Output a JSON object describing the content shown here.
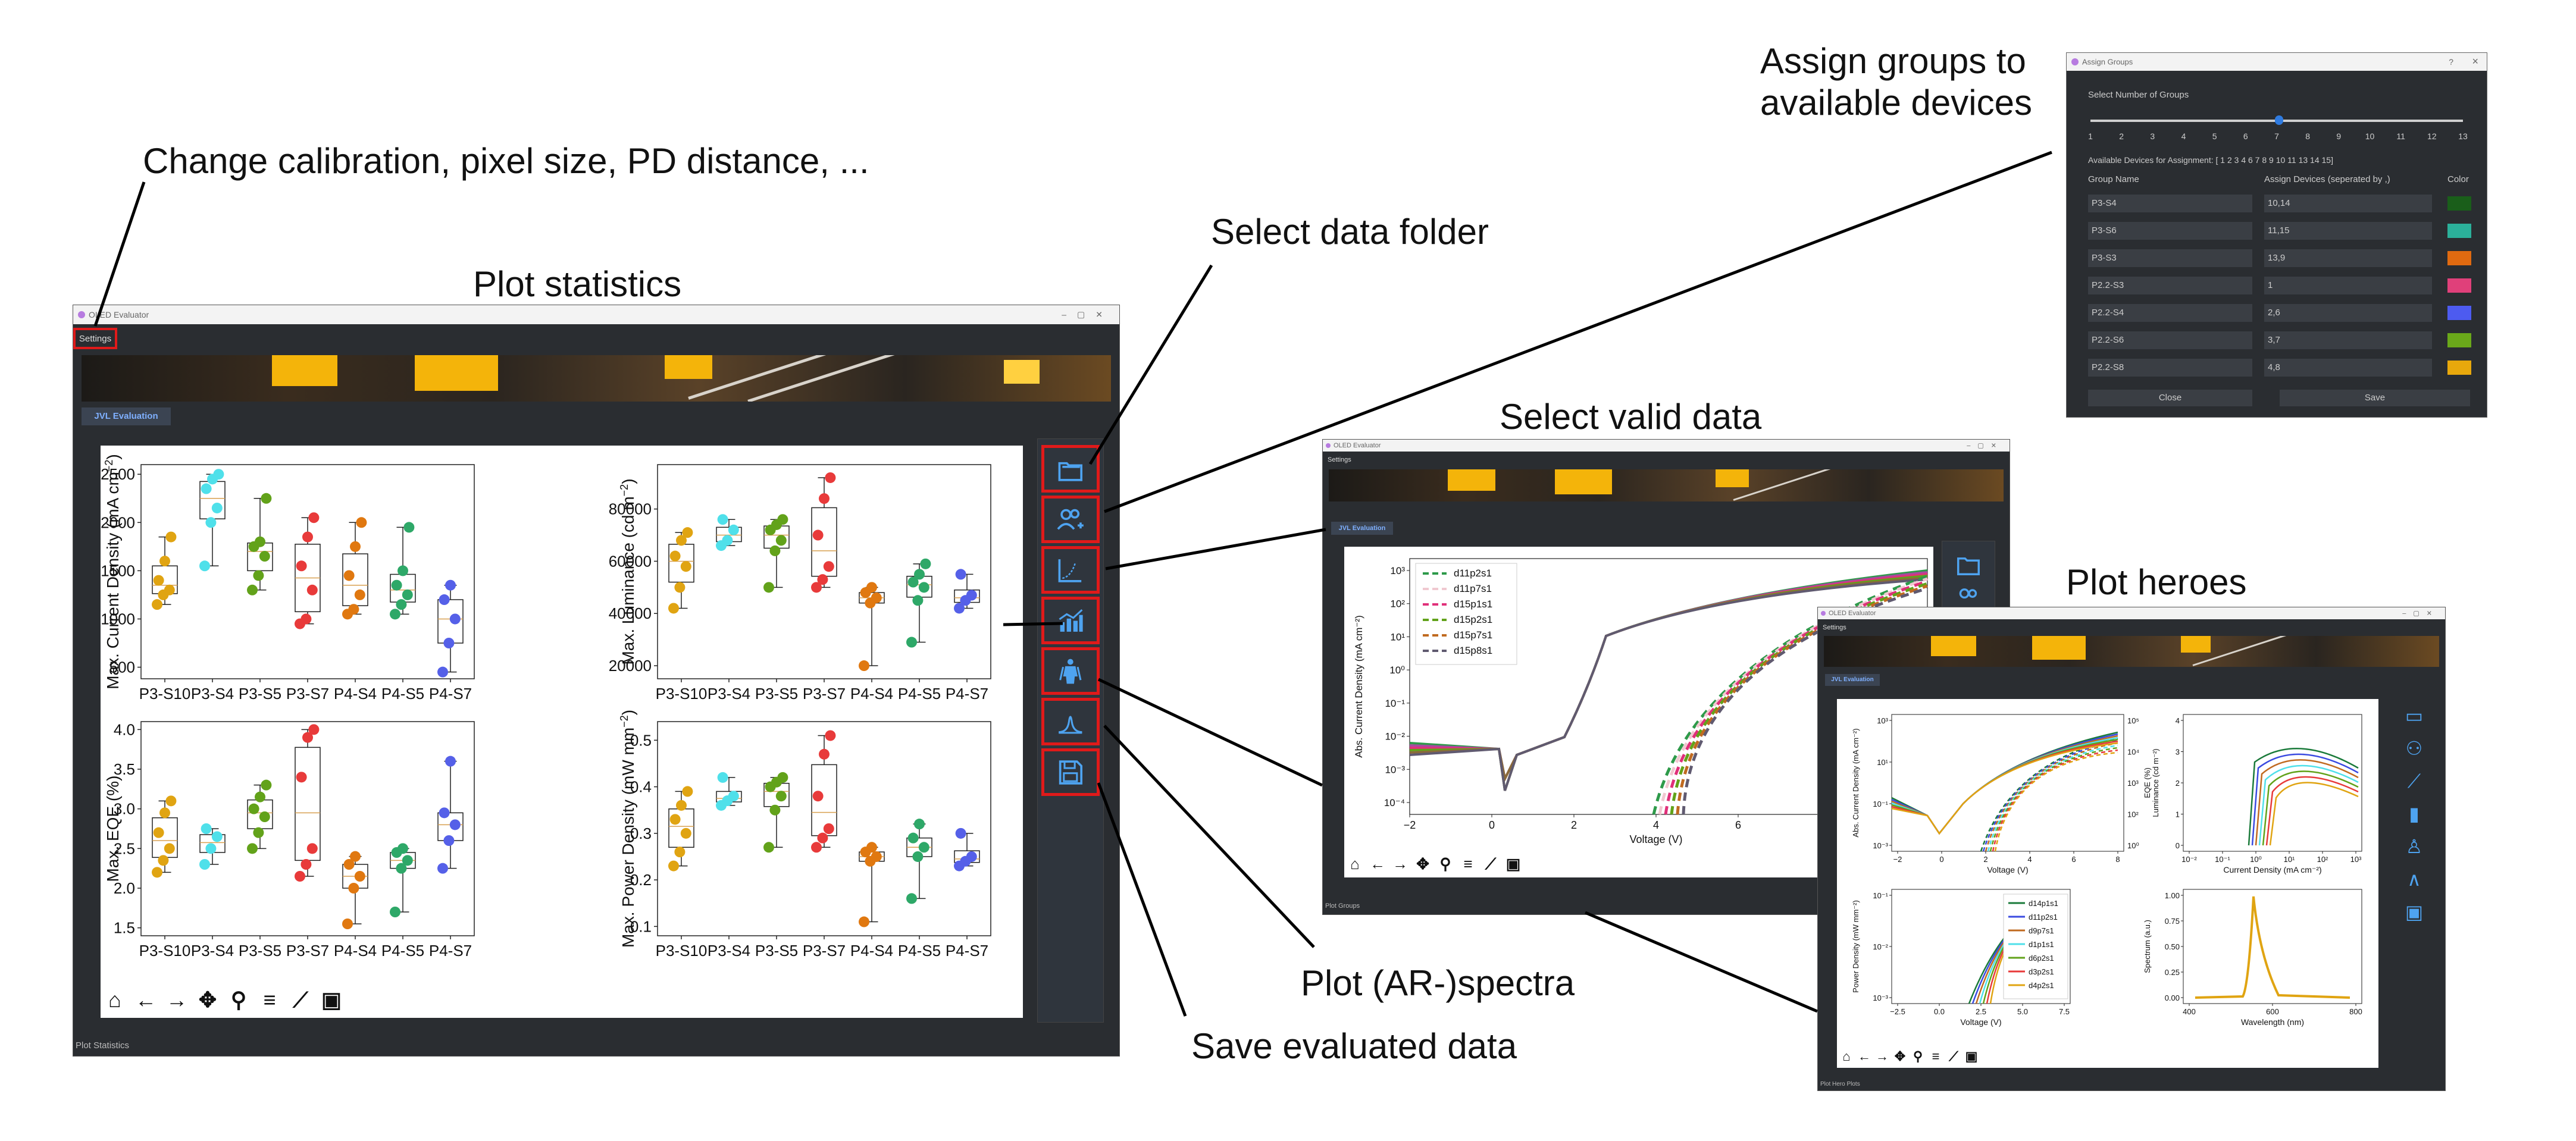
{
  "annotations": {
    "calibration": "Change calibration, pixel size, PD distance, ...",
    "plot_statistics": "Plot statistics",
    "select_folder": "Select data folder",
    "assign_groups_line1": "Assign groups to",
    "assign_groups_line2": "available devices",
    "select_valid": "Select valid data",
    "plot_heroes": "Plot heroes",
    "plot_spectra": "Plot (AR-)spectra",
    "save_data": "Save evaluated data"
  },
  "main_window": {
    "title": "OLED Evaluator",
    "menu_settings": "Settings",
    "tab": "JVL Evaluation",
    "status": "Plot Statistics"
  },
  "valid_window": {
    "title": "OLED Evaluator",
    "menu_settings": "Settings",
    "tab": "JVL Evaluation",
    "status": "Plot Groups"
  },
  "heroes_window": {
    "title": "OLED Evaluator",
    "menu_settings": "Settings",
    "tab": "JVL Evaluation",
    "status": "Plot Hero Plots"
  },
  "dialog": {
    "title": "Assign Groups",
    "help": "?",
    "close_x": "×",
    "slider_label": "Select Number of Groups",
    "slider_ticks": [
      "1",
      "2",
      "3",
      "4",
      "5",
      "6",
      "7",
      "8",
      "9",
      "10",
      "11",
      "12",
      "13"
    ],
    "slider_value": 7,
    "available": "Available Devices for Assignment: [ 1  2  3  4  6  7  8  9 10 11 13 14 15]",
    "col_name": "Group Name",
    "col_assign": "Assign Devices (seperated by ,)",
    "col_color": "Color",
    "rows": [
      {
        "name": "P3-S4",
        "devices": "10,14",
        "color": "#1a5e1a"
      },
      {
        "name": "P3-S6",
        "devices": "11,15",
        "color": "#2bb09a"
      },
      {
        "name": "P3-S3",
        "devices": "13,9",
        "color": "#e06a10"
      },
      {
        "name": "P2.2-S3",
        "devices": "1",
        "color": "#e0407a"
      },
      {
        "name": "P2.2-S4",
        "devices": "2,6",
        "color": "#4d5bf0"
      },
      {
        "name": "P2.2-S6",
        "devices": "3,7",
        "color": "#6aa81a"
      },
      {
        "name": "P2.2-S8",
        "devices": "4,8",
        "color": "#e8a80c"
      }
    ],
    "close_btn": "Close",
    "save_btn": "Save"
  },
  "colors": {
    "accent_red": "#e01a1a",
    "icon_blue": "#4ea3f0",
    "groups": [
      "#e0a412",
      "#4fe0ea",
      "#62a21a",
      "#e83a3a",
      "#e07810",
      "#2ea868",
      "#5560e8"
    ]
  },
  "toolbar_icons": [
    "home-icon",
    "back-icon",
    "forward-icon",
    "pan-icon",
    "zoom-icon",
    "configure-icon",
    "edit-axes-icon",
    "save-icon"
  ],
  "chart_data": [
    {
      "type": "scatter",
      "chart": "box-plot",
      "ylabel": "Max. Current Density (mA cm$^{-2}$)",
      "ylabel_text": "Max. Current Density (mA cm",
      "ylabel_sup": "−2",
      "categories": [
        "P3-S10",
        "P3-S4",
        "P3-S5",
        "P3-S7",
        "P4-S4",
        "P4-S5",
        "P4-S7"
      ],
      "yticks": [
        "500",
        "1000",
        "1500",
        "2000",
        "2500"
      ],
      "ylim": [
        380,
        2600
      ],
      "points": [
        [
          1150,
          1250,
          1300,
          1400,
          1600,
          1850
        ],
        [
          1550,
          2000,
          2150,
          2350,
          2450,
          2500
        ],
        [
          1300,
          1450,
          1650,
          1750,
          1800,
          2250
        ],
        [
          950,
          1000,
          1300,
          1550,
          1850,
          2050
        ],
        [
          1050,
          1100,
          1250,
          1450,
          1750,
          2000
        ],
        [
          1050,
          1150,
          1250,
          1350,
          1500,
          1950
        ],
        [
          450,
          750,
          1000,
          1200,
          1350
        ]
      ]
    },
    {
      "type": "scatter",
      "chart": "box-plot",
      "ylabel_text": "Max. Luminance (cd m",
      "ylabel_sup": "−2",
      "categories": [
        "P3-S10",
        "P3-S4",
        "P3-S5",
        "P3-S7",
        "P4-S4",
        "P4-S5",
        "P4-S7"
      ],
      "yticks": [
        "20000",
        "40000",
        "60000",
        "80000"
      ],
      "ylim": [
        15000,
        97000
      ],
      "points": [
        [
          42000,
          50000,
          58000,
          62000,
          68000,
          71000
        ],
        [
          66000,
          68000,
          72000,
          76000
        ],
        [
          50000,
          64000,
          68000,
          72000,
          74000,
          76000
        ],
        [
          50000,
          53000,
          58000,
          70000,
          84000,
          92000
        ],
        [
          20000,
          44000,
          46000,
          48000,
          50000
        ],
        [
          29000,
          45000,
          50000,
          52000,
          55000,
          59000
        ],
        [
          42000,
          45000,
          47000,
          55000
        ]
      ]
    },
    {
      "type": "scatter",
      "chart": "box-plot",
      "ylabel_text": "Max. EQE (%)",
      "ylabel_sup": "",
      "categories": [
        "P3-S10",
        "P3-S4",
        "P3-S5",
        "P3-S7",
        "P4-S4",
        "P4-S5",
        "P4-S7"
      ],
      "yticks": [
        "1.5",
        "2.0",
        "2.5",
        "3.0",
        "3.5",
        "4.0"
      ],
      "ylim": [
        1.4,
        4.1
      ],
      "points": [
        [
          2.2,
          2.35,
          2.5,
          2.7,
          2.95,
          3.1
        ],
        [
          2.3,
          2.5,
          2.65,
          2.75
        ],
        [
          2.5,
          2.7,
          2.9,
          3.0,
          3.15,
          3.3
        ],
        [
          2.15,
          2.3,
          2.5,
          3.4,
          3.9,
          4.0
        ],
        [
          1.55,
          2.0,
          2.15,
          2.3,
          2.4
        ],
        [
          1.7,
          2.25,
          2.35,
          2.45,
          2.5
        ],
        [
          2.25,
          2.6,
          2.8,
          2.95,
          3.6
        ]
      ]
    },
    {
      "type": "scatter",
      "chart": "box-plot",
      "ylabel_text": "Max. Power Density (mW mm",
      "ylabel_sup": "−2",
      "categories": [
        "P3-S10",
        "P3-S4",
        "P3-S5",
        "P3-S7",
        "P4-S4",
        "P4-S5",
        "P4-S7"
      ],
      "yticks": [
        "0.1",
        "0.2",
        "0.3",
        "0.4",
        "0.5"
      ],
      "ylim": [
        0.08,
        0.54
      ],
      "points": [
        [
          0.23,
          0.26,
          0.3,
          0.33,
          0.36,
          0.39
        ],
        [
          0.36,
          0.37,
          0.38,
          0.42
        ],
        [
          0.27,
          0.35,
          0.38,
          0.4,
          0.41,
          0.42
        ],
        [
          0.27,
          0.29,
          0.31,
          0.38,
          0.47,
          0.51
        ],
        [
          0.11,
          0.24,
          0.25,
          0.26,
          0.27
        ],
        [
          0.16,
          0.25,
          0.27,
          0.29,
          0.32
        ],
        [
          0.23,
          0.24,
          0.25,
          0.3
        ]
      ]
    },
    {
      "type": "line",
      "xlabel": "Voltage (V)",
      "ylabel": "Abs. Current Density (mA cm⁻²)",
      "xticks": [
        "−2",
        "0",
        "2",
        "4",
        "6"
      ],
      "yticks": [
        "10⁻⁴",
        "10⁻³",
        "10⁻²",
        "10⁻¹",
        "10⁰",
        "10¹",
        "10²",
        "10³"
      ],
      "legend": [
        "d11p2s1",
        "d11p7s1",
        "d15p1s1",
        "d15p2s1",
        "d15p7s1",
        "d15p8s1"
      ],
      "legend_colors": [
        "#2e9a4a",
        "#f0c8d0",
        "#e0307a",
        "#62a21a",
        "#c06a20",
        "#605a70"
      ]
    },
    {
      "type": "line",
      "xlabel": "Voltage (V)",
      "ylabel": "Abs. Current Density (mA cm⁻²)",
      "ylabel2": "Luminance (cd m⁻²)",
      "xticks": [
        "−2",
        "0",
        "2",
        "4",
        "6",
        "8"
      ],
      "yticks": [
        "10⁻³",
        "10⁻¹",
        "10¹",
        "10³"
      ],
      "yticks2": [
        "10⁰",
        "10²",
        "10³",
        "10⁴",
        "10⁵"
      ]
    },
    {
      "type": "line",
      "xlabel": "Current Density (mA cm⁻²)",
      "ylabel": "EQE (%)",
      "xticks": [
        "10⁻²",
        "10⁻¹",
        "10⁰",
        "10¹",
        "10²",
        "10³"
      ],
      "yticks": [
        "0",
        "1",
        "2",
        "3",
        "4"
      ]
    },
    {
      "type": "line",
      "xlabel": "Voltage (V)",
      "ylabel": "Power Density (mW mm⁻²)",
      "xticks": [
        "−2.5",
        "0.0",
        "2.5",
        "5.0",
        "7.5"
      ],
      "yticks": [
        "10⁻³",
        "10⁻²",
        "10⁻¹"
      ],
      "legend": [
        "d14p1s1",
        "d11p2s1",
        "d9p7s1",
        "d1p1s1",
        "d6p2s1",
        "d3p2s1",
        "d4p2s1"
      ],
      "legend_colors": [
        "#1a7a3a",
        "#3a4ae0",
        "#c06a20",
        "#4fe0ea",
        "#62a21a",
        "#e83a3a",
        "#e0a412"
      ]
    },
    {
      "type": "line",
      "xlabel": "Wavelength (nm)",
      "ylabel": "Spectrum (a.u.)",
      "xticks": [
        "400",
        "600",
        "800"
      ],
      "yticks": [
        "0.00",
        "0.25",
        "0.50",
        "0.75",
        "1.00"
      ]
    }
  ]
}
